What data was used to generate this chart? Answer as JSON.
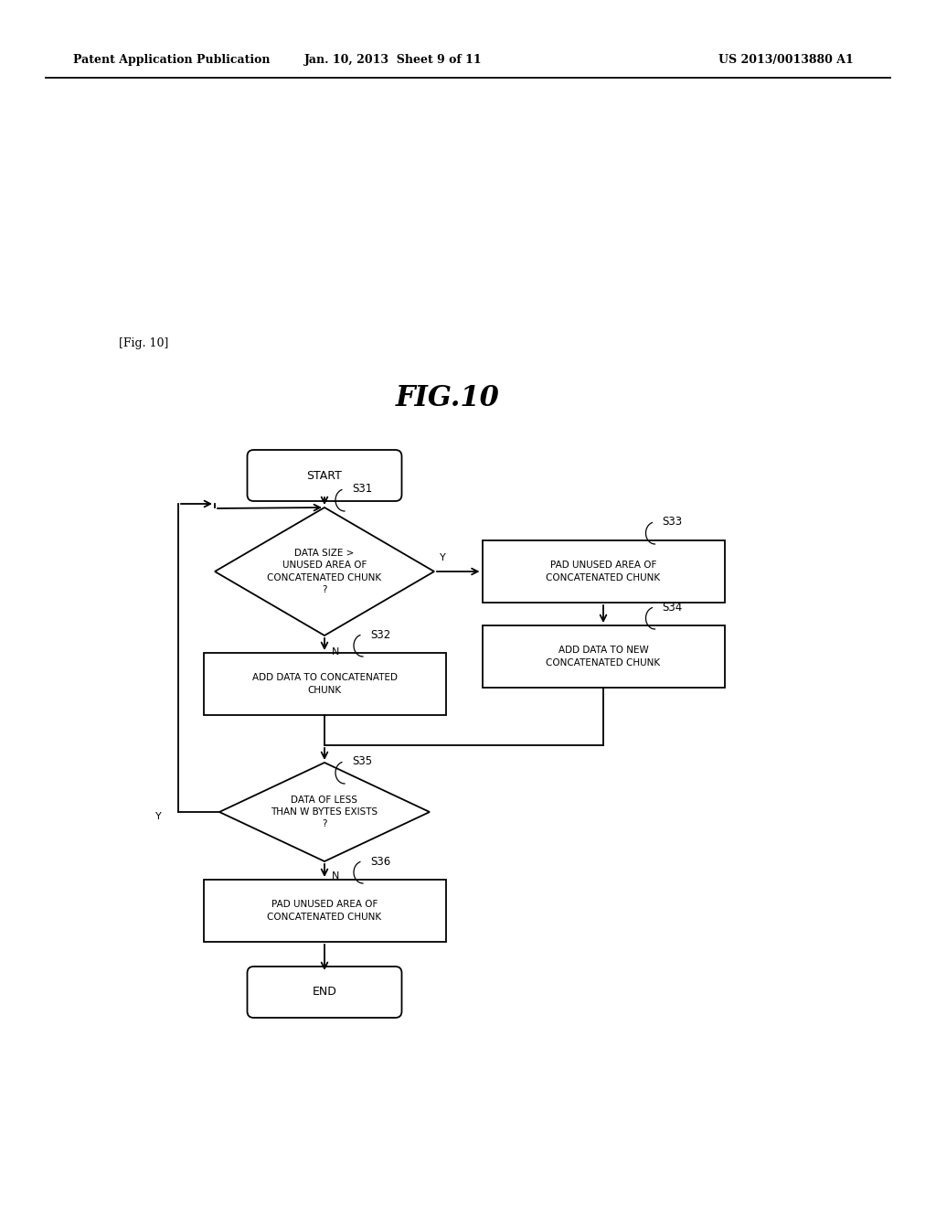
{
  "background_color": "#ffffff",
  "header_left": "Patent Application Publication",
  "header_center": "Jan. 10, 2013  Sheet 9 of 11",
  "header_right": "US 2013/0013880 A1",
  "fig_label": "[Fig. 10]",
  "fig_title": "FIG.10",
  "line_color": "#000000",
  "text_color": "#000000",
  "font_size_node": 7.5,
  "font_size_header": 9,
  "font_size_title": 22,
  "font_size_step": 8.5
}
